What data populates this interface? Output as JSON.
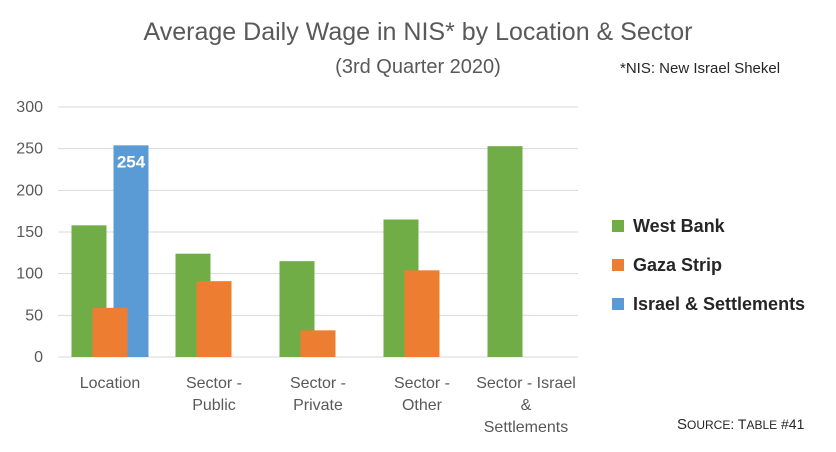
{
  "title": "Average Daily Wage in NIS* by Location & Sector",
  "subtitle": "(3rd Quarter 2020)",
  "note": "*NIS: New Israel Shekel",
  "source": {
    "prefix_big": "S",
    "prefix_small": "OURCE",
    "colon": ": T",
    "table_small": "ABLE",
    "table_num": " #41"
  },
  "colors": {
    "west_bank": "#70AD47",
    "gaza_strip": "#ED7D31",
    "israel_settlements": "#5B9BD5",
    "grid": "#D9D9D9",
    "axis_text": "#595959"
  },
  "chart_data": {
    "type": "bar",
    "title": "Average Daily Wage in NIS* by Location & Sector",
    "subtitle": "(3rd Quarter 2020)",
    "xlabel": "",
    "ylabel": "",
    "ylim": [
      0,
      300
    ],
    "yticks": [
      0,
      50,
      100,
      150,
      200,
      250,
      300
    ],
    "grid": true,
    "legend_position": "right",
    "categories": [
      [
        "Location"
      ],
      [
        "Sector -",
        "Public"
      ],
      [
        "Sector -",
        "Private"
      ],
      [
        "Sector -",
        "Other"
      ],
      [
        "Sector - Israel",
        "&",
        "Settlements"
      ]
    ],
    "series": [
      {
        "name": "West Bank",
        "color": "#70AD47",
        "values": [
          158,
          124,
          115,
          165,
          253
        ]
      },
      {
        "name": "Gaza Strip",
        "color": "#ED7D31",
        "values": [
          59,
          91,
          32,
          104,
          null
        ]
      },
      {
        "name": "Israel & Settlements",
        "color": "#5B9BD5",
        "values": [
          254,
          null,
          null,
          null,
          null
        ]
      }
    ],
    "data_labels": [
      {
        "series": 2,
        "category": 0,
        "text": "254"
      }
    ]
  }
}
